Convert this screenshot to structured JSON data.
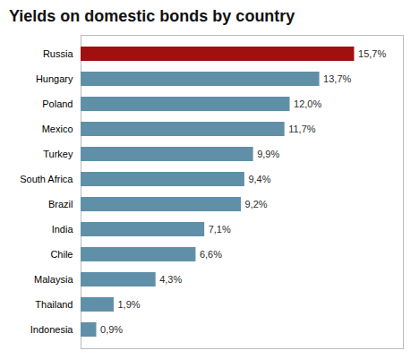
{
  "chart_data": {
    "type": "bar",
    "title": "Yields on domestic bonds by country",
    "orientation": "horizontal",
    "categories": [
      "Russia",
      "Hungary",
      "Poland",
      "Mexico",
      "Turkey",
      "South Africa",
      "Brazil",
      "India",
      "Chile",
      "Malaysia",
      "Thailand",
      "Indonesia"
    ],
    "values": [
      15.7,
      13.7,
      12.0,
      11.7,
      9.9,
      9.4,
      9.2,
      7.1,
      6.6,
      4.3,
      1.9,
      0.9
    ],
    "value_labels": [
      "15,7%",
      "13,7%",
      "12,0%",
      "11,7%",
      "9,9%",
      "9,4%",
      "9,2%",
      "7,1%",
      "6,6%",
      "4,3%",
      "1,9%",
      "0,9%"
    ],
    "colors": [
      "#a01010",
      "#5f90a8",
      "#5f90a8",
      "#5f90a8",
      "#5f90a8",
      "#5f90a8",
      "#5f90a8",
      "#5f90a8",
      "#5f90a8",
      "#5f90a8",
      "#5f90a8",
      "#5f90a8"
    ],
    "xlim": [
      0,
      18.5
    ],
    "data_labels": true,
    "tick_labels": "y",
    "grid": false
  }
}
